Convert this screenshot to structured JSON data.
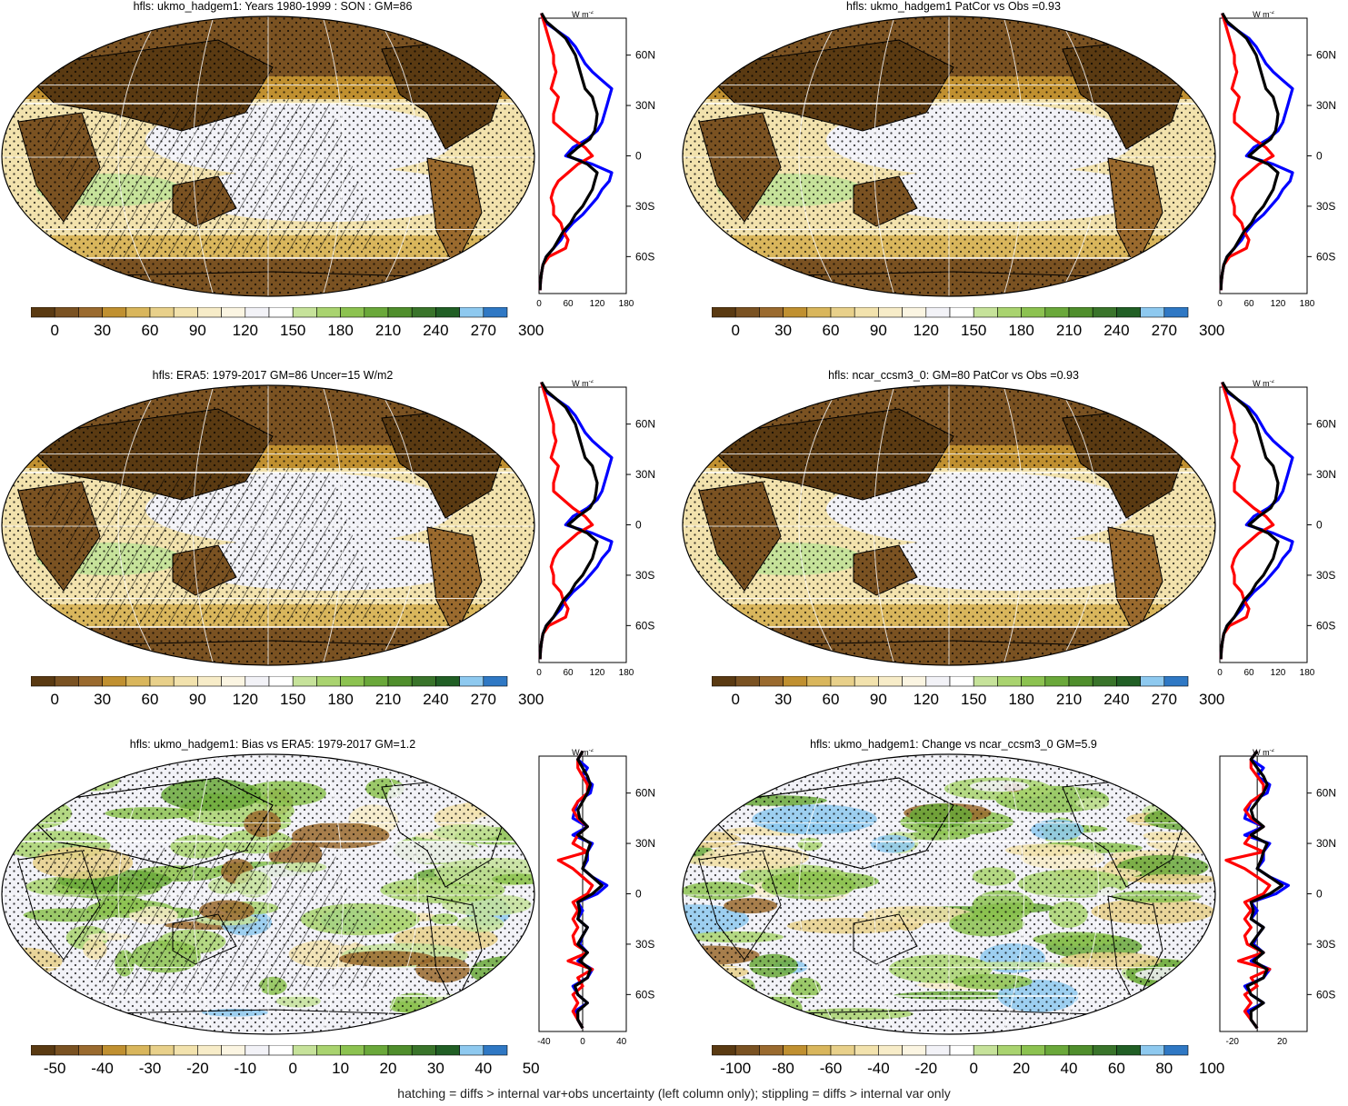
{
  "footer": "hatching = diffs > internal var+obs uncertainty (left column only); stippling = diffs > internal var only",
  "profile_unit": "W m",
  "profile_unit_sup": "-2",
  "lat_labels": [
    "60N",
    "30N",
    "0",
    "30S",
    "60S"
  ],
  "panels": [
    {
      "title": "hfls: ukmo_hadgem1: Years 1980-1999 : SON : GM=86",
      "kind": "abs",
      "cbar_labels": [
        "0",
        "30",
        "60",
        "90",
        "120",
        "150",
        "180",
        "210",
        "240",
        "270",
        "300"
      ],
      "x_ticks": [
        "0",
        "60",
        "120",
        "180"
      ],
      "hatch": true
    },
    {
      "title": "hfls: ukmo_hadgem1 PatCor vs Obs =0.93",
      "kind": "abs",
      "cbar_labels": [
        "0",
        "30",
        "60",
        "90",
        "120",
        "150",
        "180",
        "210",
        "240",
        "270",
        "300"
      ],
      "x_ticks": [
        "0",
        "60",
        "120",
        "180"
      ],
      "hatch": false
    },
    {
      "title": "hfls: ERA5: 1979-2017 GM=86 Uncer=15 W/m2",
      "kind": "abs",
      "cbar_labels": [
        "0",
        "30",
        "60",
        "90",
        "120",
        "150",
        "180",
        "210",
        "240",
        "270",
        "300"
      ],
      "x_ticks": [
        "0",
        "60",
        "120",
        "180"
      ],
      "hatch": true
    },
    {
      "title": "hfls: ncar_ccsm3_0: GM=80 PatCor vs Obs =0.93",
      "kind": "abs",
      "cbar_labels": [
        "0",
        "30",
        "60",
        "90",
        "120",
        "150",
        "180",
        "210",
        "240",
        "270",
        "300"
      ],
      "x_ticks": [
        "0",
        "60",
        "120",
        "180"
      ],
      "hatch": false
    },
    {
      "title": "hfls: ukmo_hadgem1: Bias vs ERA5: 1979-2017  GM=1.2",
      "kind": "diff",
      "cbar_labels": [
        "-50",
        "-40",
        "-30",
        "-20",
        "-10",
        "0",
        "10",
        "20",
        "30",
        "40",
        "50"
      ],
      "x_ticks": [
        "-40",
        "0",
        "40"
      ],
      "hatch": true
    },
    {
      "title": "hfls: ukmo_hadgem1: Change vs ncar_ccsm3_0 GM=5.9",
      "kind": "diff",
      "cbar_labels": [
        "-100",
        "-80",
        "-60",
        "-40",
        "-20",
        "0",
        "20",
        "40",
        "60",
        "80",
        "100"
      ],
      "x_ticks": [
        "-20",
        "20"
      ],
      "hatch": false
    }
  ],
  "colors": {
    "abs_scale": [
      "#5a3a12",
      "#7a5222",
      "#9a6a2e",
      "#c09030",
      "#d9b65c",
      "#e8d08a",
      "#f2e2ad",
      "#f7ecc8",
      "#fbf5e2",
      "#f2f2f7",
      "#ffffff",
      "#c6e29a",
      "#a9d36f",
      "#8cc250",
      "#6aa83a",
      "#4f8e2c",
      "#39742a",
      "#215f25",
      "#8ec9ef",
      "#2f78c4"
    ],
    "diff_scale": [
      "#5a3a12",
      "#7a5222",
      "#9a6a2e",
      "#c09030",
      "#d9b65c",
      "#e8d08a",
      "#f2e2ad",
      "#f7ecc8",
      "#fbf5e2",
      "#f2f2f7",
      "#ffffff",
      "#c6e29a",
      "#a9d36f",
      "#8cc250",
      "#6aa83a",
      "#4f8e2c",
      "#39742a",
      "#215f25",
      "#8ec9ef",
      "#2f78c4"
    ],
    "curve_a": "#0000ff",
    "curve_b": "#000000",
    "curve_c": "#ff0000"
  },
  "profiles": {
    "lats": [
      85,
      80,
      75,
      70,
      65,
      60,
      55,
      50,
      45,
      40,
      35,
      30,
      25,
      20,
      15,
      10,
      5,
      0,
      -5,
      -10,
      -15,
      -20,
      -25,
      -30,
      -35,
      -40,
      -45,
      -50,
      -55,
      -60,
      -65,
      -70,
      -75,
      -80
    ],
    "abs_blue": [
      5,
      10,
      35,
      60,
      75,
      85,
      95,
      110,
      130,
      150,
      145,
      140,
      135,
      130,
      120,
      100,
      70,
      55,
      110,
      150,
      145,
      130,
      120,
      105,
      90,
      70,
      55,
      45,
      30,
      15,
      8,
      5,
      3,
      2
    ],
    "abs_black": [
      5,
      15,
      35,
      55,
      65,
      75,
      80,
      85,
      90,
      95,
      110,
      115,
      120,
      118,
      115,
      105,
      80,
      60,
      100,
      120,
      115,
      110,
      100,
      90,
      75,
      65,
      50,
      40,
      30,
      15,
      8,
      5,
      3,
      2
    ],
    "abs_red": [
      5,
      10,
      15,
      20,
      25,
      30,
      30,
      35,
      30,
      25,
      40,
      35,
      30,
      30,
      50,
      70,
      95,
      110,
      80,
      60,
      40,
      30,
      25,
      30,
      30,
      45,
      50,
      60,
      55,
      20,
      8,
      5,
      3,
      2
    ],
    "diff_blue": [
      0,
      -5,
      5,
      0,
      10,
      8,
      -5,
      -8,
      -10,
      5,
      -10,
      10,
      5,
      5,
      0,
      10,
      25,
      15,
      -5,
      0,
      -5,
      5,
      0,
      -3,
      5,
      -5,
      10,
      5,
      -10,
      -5,
      5,
      -8,
      -5,
      0
    ],
    "diff_black": [
      0,
      -5,
      0,
      5,
      8,
      5,
      0,
      -5,
      -3,
      5,
      -5,
      8,
      5,
      3,
      0,
      10,
      20,
      10,
      -5,
      -3,
      -5,
      5,
      0,
      -5,
      5,
      -3,
      8,
      5,
      -8,
      -5,
      5,
      -5,
      -5,
      0
    ],
    "diff_red": [
      0,
      -5,
      -5,
      0,
      5,
      5,
      -5,
      -10,
      -5,
      5,
      -5,
      -10,
      5,
      -25,
      -10,
      0,
      10,
      5,
      -10,
      -5,
      -10,
      -5,
      -10,
      -8,
      5,
      -15,
      10,
      -5,
      0,
      -10,
      -5,
      -10,
      -5,
      0
    ]
  }
}
